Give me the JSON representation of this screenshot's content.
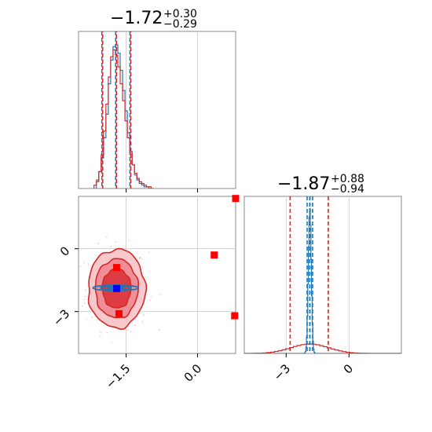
{
  "chart_data": [
    {
      "type": "histogram",
      "panel": "top-left marginal",
      "title_main": "−1.72",
      "title_sup": "+0.30",
      "title_sub": "−0.29",
      "xlim": [
        -2.5,
        0.8
      ],
      "xticks": [
        -1.5,
        0.0
      ],
      "quantile_lines": [
        -2.01,
        -1.72,
        -1.42
      ],
      "series": [
        {
          "color": "#1f77b4",
          "bins_x": [
            -2.1,
            -2.05,
            -2.0,
            -1.95,
            -1.9,
            -1.85,
            -1.8,
            -1.75,
            -1.7,
            -1.65,
            -1.6,
            -1.55,
            -1.5,
            -1.45,
            -1.4,
            -1.35,
            -1.3,
            -1.25,
            -1.2,
            -1.15,
            -1.1,
            -1.05,
            -1.0
          ],
          "counts": [
            0.04,
            0.1,
            0.18,
            0.3,
            0.44,
            0.62,
            0.76,
            0.84,
            0.85,
            0.8,
            0.7,
            0.58,
            0.46,
            0.33,
            0.22,
            0.14,
            0.08,
            0.05,
            0.03,
            0.02,
            0.01,
            0.01,
            0.0
          ]
        },
        {
          "color": "#d62728",
          "bins_x": [
            -2.15,
            -2.1,
            -2.05,
            -2.0,
            -1.95,
            -1.9,
            -1.85,
            -1.8,
            -1.75,
            -1.7,
            -1.65,
            -1.6,
            -1.55,
            -1.5,
            -1.45,
            -1.4,
            -1.35,
            -1.3,
            -1.25,
            -1.2,
            -1.15,
            -1.1,
            -1.05,
            -1.0,
            -0.95
          ],
          "counts": [
            0.02,
            0.05,
            0.1,
            0.2,
            0.34,
            0.5,
            0.66,
            0.78,
            0.82,
            0.79,
            0.72,
            0.62,
            0.52,
            0.4,
            0.3,
            0.21,
            0.14,
            0.09,
            0.06,
            0.04,
            0.03,
            0.02,
            0.01,
            0.01,
            0.0
          ]
        }
      ]
    },
    {
      "type": "scatter",
      "panel": "bottom-left 2D",
      "xlim": [
        -2.5,
        0.8
      ],
      "ylim": [
        -5.0,
        2.5
      ],
      "xticks": [
        -1.5,
        0.0
      ],
      "xtick_labels": [
        "−1.5",
        "0.0"
      ],
      "yticks": [
        0,
        -3
      ],
      "ytick_labels": [
        "0",
        "−3"
      ],
      "markers": [
        {
          "x": -1.7,
          "y": -0.9,
          "color": "#ff0000"
        },
        {
          "x": -1.7,
          "y": -1.9,
          "color": "#0000ff"
        },
        {
          "x": -1.65,
          "y": -3.1,
          "color": "#ff0000"
        },
        {
          "x": 0.35,
          "y": -0.3,
          "color": "#ff0000"
        },
        {
          "x": 0.78,
          "y": -3.2,
          "color": "#ff0000"
        },
        {
          "x": 0.8,
          "y": 2.4,
          "color": "#ff0000"
        }
      ],
      "red_contours": {
        "center": [
          -1.7,
          -1.9
        ],
        "sigma": [
          0.3,
          0.94
        ],
        "levels": [
          1,
          1.5,
          2
        ]
      },
      "blue_contours": {
        "center": [
          -1.72,
          -1.87
        ],
        "sigma": [
          0.29,
          0.08
        ],
        "levels": [
          1,
          2,
          3
        ]
      }
    },
    {
      "type": "histogram",
      "panel": "bottom-right marginal",
      "title_main": "−1.87",
      "title_sup": "+0.88",
      "title_sub": "−0.94",
      "xlim": [
        -5.0,
        2.5
      ],
      "xticks": [
        -3,
        0
      ],
      "xtick_labels": [
        "−3",
        "0"
      ],
      "quantile_lines_red": [
        -2.81,
        -1.87,
        -0.99
      ],
      "quantile_lines_blue": [
        -2.0,
        -1.87,
        -1.74
      ],
      "series": [
        {
          "color": "#1f77b4",
          "mean": -1.87,
          "sigma": 0.07
        },
        {
          "color": "#d62728",
          "mean": -1.87,
          "sigma": 0.9
        }
      ]
    }
  ]
}
